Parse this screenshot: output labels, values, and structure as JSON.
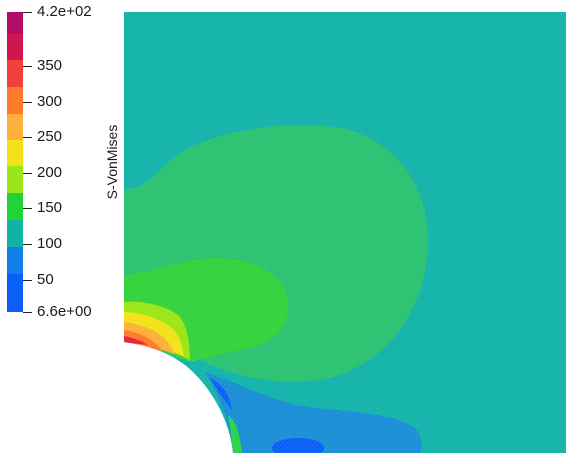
{
  "legend": {
    "title": "S-VonMises",
    "max_label": "4.2e+02",
    "min_label": "6.6e+00",
    "ticks": [
      "350",
      "300",
      "250",
      "200",
      "150",
      "100",
      "50"
    ],
    "range": [
      6.6,
      420
    ]
  },
  "colors": {
    "background_field": "#14b3ab",
    "band_colors": [
      "#0b5ef7",
      "#127fe8",
      "#11b3a4",
      "#22d23a",
      "#9ae616",
      "#f3e21a",
      "#ffb03a",
      "#ff8a2b",
      "#f1503a",
      "#e8233f",
      "#b10d66"
    ]
  }
}
